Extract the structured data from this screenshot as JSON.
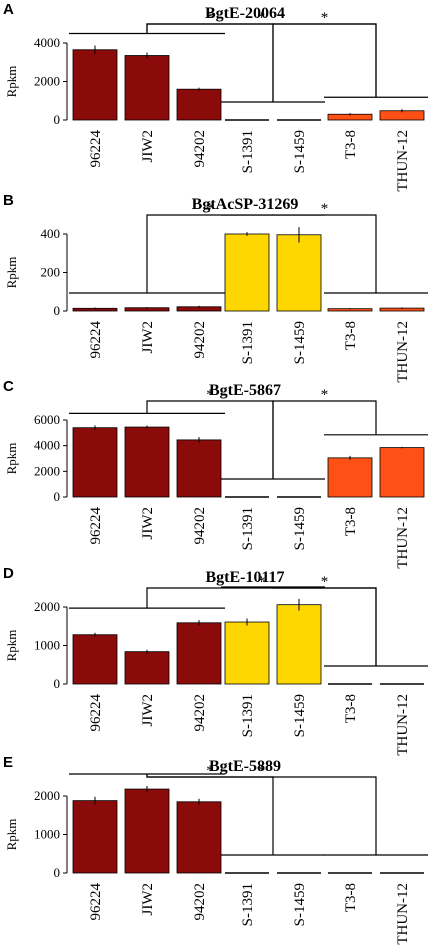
{
  "figure": {
    "categories": [
      "96224",
      "JIW2",
      "94202",
      "S-1391",
      "S-1459",
      "T3-8",
      "THUN-12"
    ],
    "ylabel": "Rpkm",
    "significance_mark": "*",
    "colors": {
      "dark_red": "#8B0A0A",
      "yellow": "#FFD700",
      "orange": "#FF5016",
      "black": "#000000"
    }
  },
  "chart_data": [
    {
      "type": "bar",
      "panel": "A",
      "title": "BgtE-20064",
      "ylabel": "Rpkm",
      "ylim": [
        0,
        4000
      ],
      "yticks": [
        0,
        2000,
        4000
      ],
      "categories": [
        "96224",
        "JIW2",
        "94202",
        "S-1391",
        "S-1459",
        "T3-8",
        "THUN-12"
      ],
      "values": [
        3650,
        3350,
        1600,
        0,
        0,
        300,
        480
      ],
      "errors": [
        220,
        150,
        80,
        0,
        0,
        60,
        80
      ],
      "colors": [
        "dark_red",
        "dark_red",
        "dark_red",
        "dark_red",
        "dark_red",
        "orange",
        "orange"
      ],
      "groups": [
        [
          0,
          2
        ],
        [
          3,
          4
        ],
        [
          5,
          6
        ]
      ],
      "comparisons": [
        [
          0,
          1
        ],
        [
          0,
          2
        ],
        [
          1,
          2
        ]
      ]
    },
    {
      "type": "bar",
      "panel": "B",
      "title": "BgtAcSP-31269",
      "ylabel": "Rpkm",
      "ylim": [
        0,
        400
      ],
      "yticks": [
        0,
        200,
        400
      ],
      "categories": [
        "96224",
        "JIW2",
        "94202",
        "S-1391",
        "S-1459",
        "T3-8",
        "THUN-12"
      ],
      "values": [
        14,
        17,
        22,
        400,
        396,
        12,
        15
      ],
      "errors": [
        4,
        4,
        5,
        10,
        40,
        3,
        4
      ],
      "colors": [
        "dark_red",
        "dark_red",
        "dark_red",
        "yellow",
        "yellow",
        "orange",
        "orange"
      ],
      "groups": [
        [
          0,
          2
        ],
        [
          3,
          4
        ],
        [
          5,
          6
        ]
      ],
      "comparisons": [
        [
          0,
          1
        ],
        [
          1,
          2
        ]
      ]
    },
    {
      "type": "bar",
      "panel": "C",
      "title": "BgtE-5867",
      "ylabel": "Rpkm",
      "ylim": [
        0,
        6000
      ],
      "yticks": [
        0,
        2000,
        4000,
        6000
      ],
      "categories": [
        "96224",
        "JIW2",
        "94202",
        "S-1391",
        "S-1459",
        "T3-8",
        "THUN-12"
      ],
      "values": [
        5400,
        5450,
        4450,
        0,
        0,
        3050,
        3850
      ],
      "errors": [
        180,
        120,
        220,
        0,
        0,
        150,
        60
      ],
      "colors": [
        "dark_red",
        "dark_red",
        "dark_red",
        "dark_red",
        "dark_red",
        "orange",
        "orange"
      ],
      "groups": [
        [
          0,
          2
        ],
        [
          3,
          4
        ],
        [
          5,
          6
        ]
      ],
      "comparisons": [
        [
          0,
          1
        ],
        [
          1,
          2
        ]
      ]
    },
    {
      "type": "bar",
      "panel": "D",
      "title": "BgtE-10117",
      "ylabel": "Rpkm",
      "ylim": [
        0,
        2000
      ],
      "yticks": [
        0,
        1000,
        2000
      ],
      "categories": [
        "96224",
        "JIW2",
        "94202",
        "S-1391",
        "S-1459",
        "T3-8",
        "THUN-12"
      ],
      "values": [
        1280,
        840,
        1590,
        1610,
        2060,
        0,
        0
      ],
      "errors": [
        50,
        50,
        70,
        90,
        150,
        0,
        0
      ],
      "colors": [
        "dark_red",
        "dark_red",
        "dark_red",
        "yellow",
        "yellow",
        "dark_red",
        "dark_red"
      ],
      "groups": [
        [
          0,
          2
        ],
        [
          3,
          4
        ],
        [
          5,
          6
        ]
      ],
      "comparisons": [
        [
          0,
          2
        ],
        [
          1,
          2
        ]
      ]
    },
    {
      "type": "bar",
      "panel": "E",
      "title": "BgtE-5889",
      "ylabel": "Rpkm",
      "ylim": [
        0,
        2000
      ],
      "yticks": [
        0,
        1000,
        2000
      ],
      "categories": [
        "96224",
        "JIW2",
        "94202",
        "S-1391",
        "S-1459",
        "T3-8",
        "THUN-12"
      ],
      "values": [
        1880,
        2180,
        1850,
        0,
        0,
        0,
        0
      ],
      "errors": [
        100,
        80,
        80,
        0,
        0,
        0,
        0
      ],
      "colors": [
        "dark_red",
        "dark_red",
        "dark_red",
        "dark_red",
        "dark_red",
        "dark_red",
        "dark_red"
      ],
      "groups": [
        [
          0,
          2
        ],
        [
          3,
          4
        ],
        [
          5,
          6
        ]
      ],
      "comparisons": [
        [
          0,
          1
        ],
        [
          0,
          2
        ]
      ]
    }
  ]
}
